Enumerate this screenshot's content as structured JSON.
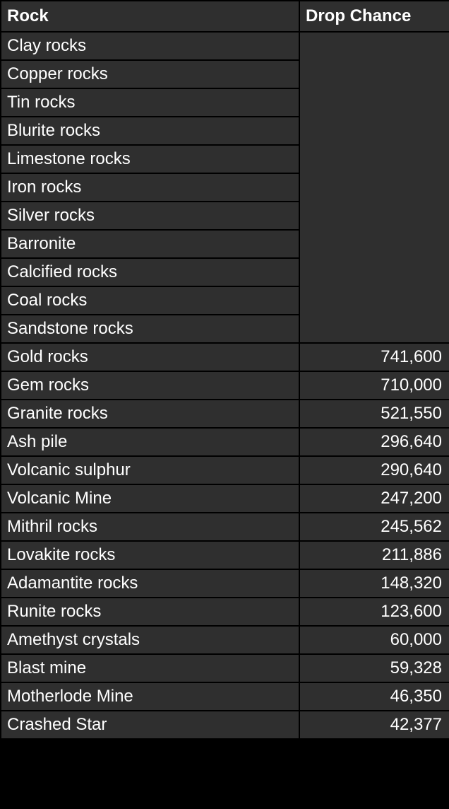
{
  "table": {
    "headers": {
      "rock": "Rock",
      "drop_chance": "Drop Chance"
    },
    "rows": [
      {
        "rock": "Clay rocks",
        "drop": ""
      },
      {
        "rock": "Copper rocks",
        "drop": ""
      },
      {
        "rock": "Tin rocks",
        "drop": ""
      },
      {
        "rock": "Blurite rocks",
        "drop": ""
      },
      {
        "rock": "Limestone rocks",
        "drop": ""
      },
      {
        "rock": "Iron rocks",
        "drop": ""
      },
      {
        "rock": "Silver rocks",
        "drop": ""
      },
      {
        "rock": "Barronite",
        "drop": ""
      },
      {
        "rock": "Calcified rocks",
        "drop": ""
      },
      {
        "rock": "Coal rocks",
        "drop": ""
      },
      {
        "rock": "Sandstone rocks",
        "drop": ""
      },
      {
        "rock": "Gold rocks",
        "drop": "741,600"
      },
      {
        "rock": "Gem rocks",
        "drop": "710,000"
      },
      {
        "rock": "Granite rocks",
        "drop": "521,550"
      },
      {
        "rock": "Ash pile",
        "drop": "296,640"
      },
      {
        "rock": "Volcanic sulphur",
        "drop": "290,640"
      },
      {
        "rock": "Volcanic Mine",
        "drop": "247,200"
      },
      {
        "rock": "Mithril rocks",
        "drop": "245,562"
      },
      {
        "rock": "Lovakite rocks",
        "drop": "211,886"
      },
      {
        "rock": "Adamantite rocks",
        "drop": "148,320"
      },
      {
        "rock": "Runite rocks",
        "drop": "123,600"
      },
      {
        "rock": "Amethyst crystals",
        "drop": "60,000"
      },
      {
        "rock": "Blast mine",
        "drop": "59,328"
      },
      {
        "rock": "Motherlode Mine",
        "drop": "46,350"
      },
      {
        "rock": "Crashed Star",
        "drop": "42,377"
      }
    ]
  },
  "colors": {
    "cell_background": "#2f2f2f",
    "border": "#000000",
    "text": "#ffffff"
  }
}
